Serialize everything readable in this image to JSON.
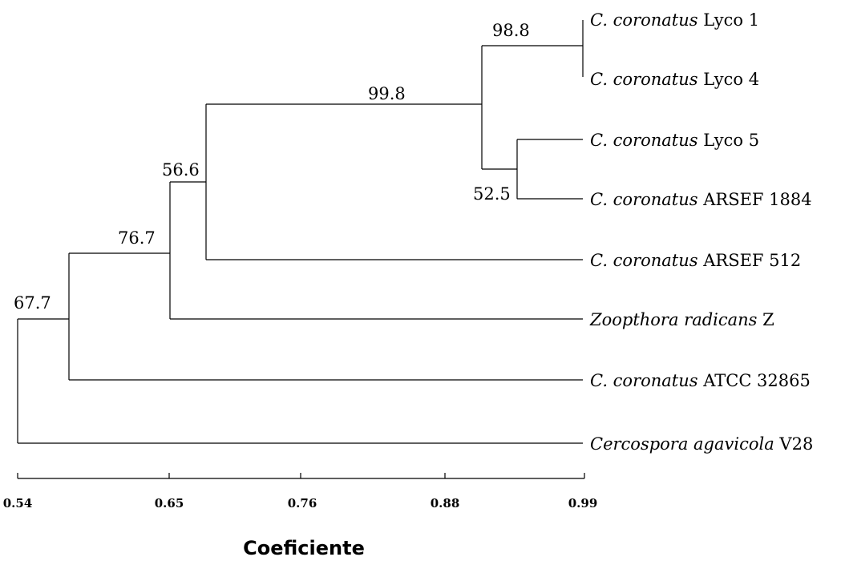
{
  "dendrogram": {
    "axis": {
      "title": "Coeficiente",
      "ticks": [
        "0.54",
        "0.65",
        "0.76",
        "0.88",
        "0.99"
      ]
    },
    "leaves": [
      {
        "italic": "C. coronatus",
        "rest": " Lyco 1"
      },
      {
        "italic": "C. coronatus",
        "rest": " Lyco 4"
      },
      {
        "italic": "C. coronatus",
        "rest": " Lyco 5"
      },
      {
        "italic": "C. coronatus",
        "rest": " ARSEF 1884"
      },
      {
        "italic": "C. coronatus",
        "rest": " ARSEF 512"
      },
      {
        "italic": "Zoopthora radicans",
        "rest": " Z"
      },
      {
        "italic": "C. coronatus",
        "rest": " ATCC 32865"
      },
      {
        "italic": "Cercospora agavicola",
        "rest": " V28"
      }
    ],
    "node_values": [
      "98.8",
      "99.8",
      "52.5",
      "56.6",
      "76.7",
      "67.7"
    ]
  }
}
